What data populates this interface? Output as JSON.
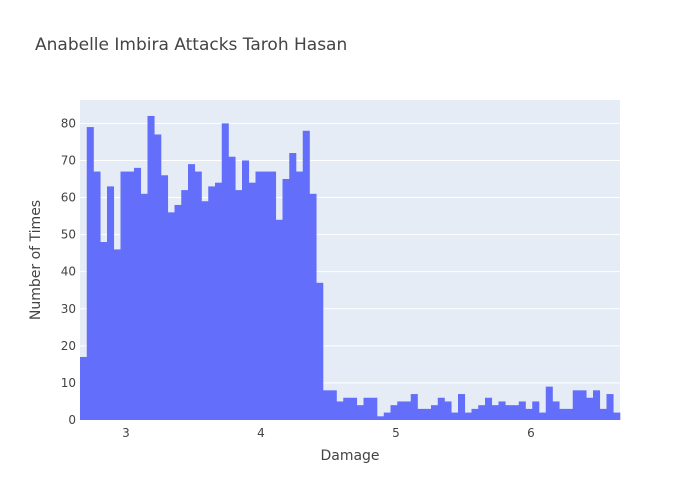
{
  "chart_data": {
    "type": "bar",
    "title": "Anabelle Imbira Attacks Taroh Hasan",
    "xlabel": "Damage",
    "ylabel": "Number of Times",
    "x_start": 2.66,
    "bin_width": 0.05,
    "xlim": [
      2.66,
      6.66
    ],
    "ylim": [
      0,
      86.3
    ],
    "xticks": [
      3,
      4,
      5,
      6
    ],
    "yticks": [
      0,
      10,
      20,
      30,
      40,
      50,
      60,
      70,
      80
    ],
    "values": [
      17,
      79,
      67,
      48,
      63,
      46,
      67,
      67,
      68,
      61,
      82,
      77,
      66,
      56,
      58,
      62,
      69,
      67,
      59,
      63,
      64,
      80,
      71,
      62,
      70,
      64,
      67,
      67,
      67,
      54,
      65,
      72,
      67,
      78,
      61,
      37,
      8,
      8,
      5,
      6,
      6,
      4,
      6,
      6,
      1,
      2,
      4,
      5,
      5,
      7,
      3,
      3,
      4,
      6,
      5,
      2,
      7,
      2,
      3,
      4,
      6,
      4,
      5,
      4,
      4,
      5,
      3,
      5,
      2,
      9,
      5,
      3,
      3,
      8,
      8,
      6,
      8,
      3,
      7,
      2
    ],
    "grid": true,
    "colors": {
      "bar": "#636efa",
      "plot_bg": "#e5ecf6",
      "grid": "#ffffff"
    }
  }
}
